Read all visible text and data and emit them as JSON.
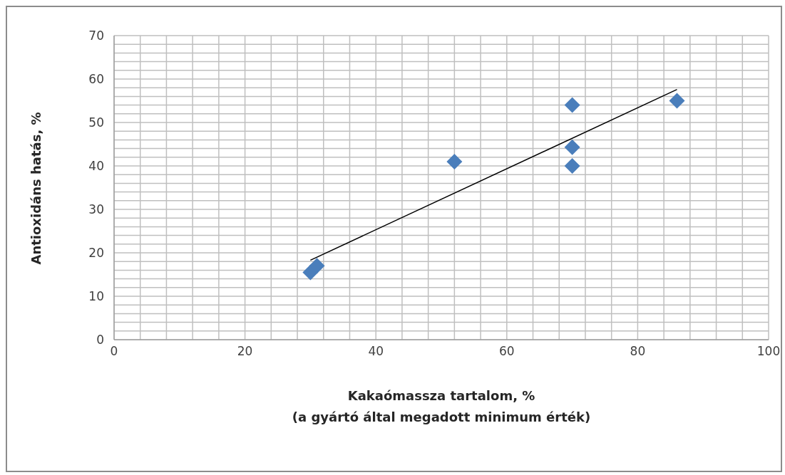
{
  "chart_data": {
    "type": "scatter",
    "xlabel": "Kakaómassza tartalom, %\n(a gyártó által megadott minimum érték)",
    "ylabel": "Antioxidáns hatás, %",
    "series": [
      {
        "color": "#4a7ebb",
        "marker": "diamond",
        "x": [
          30,
          31,
          52,
          70,
          70,
          70,
          86
        ],
        "values": [
          15.5,
          17,
          41,
          54,
          44.3,
          40,
          55
        ]
      },
      {
        "type": "line",
        "color": "#000000",
        "marker": "none",
        "x": [
          30,
          86
        ],
        "values": [
          18.3,
          57.6
        ]
      }
    ],
    "xlim": [
      0,
      100
    ],
    "ylim": [
      0,
      70
    ],
    "xticks": [
      0,
      {
        "value": 4,
        "label": null
      },
      {
        "value": 8,
        "label": null
      },
      {
        "value": 12,
        "label": null
      },
      {
        "value": 16,
        "label": null
      },
      20,
      {
        "value": 24,
        "label": null
      },
      {
        "value": 28,
        "label": null
      },
      {
        "value": 32,
        "label": null
      },
      {
        "value": 36,
        "label": null
      },
      40,
      {
        "value": 44,
        "label": null
      },
      {
        "value": 48,
        "label": null
      },
      {
        "value": 52,
        "label": null
      },
      {
        "value": 56,
        "label": null
      },
      60,
      {
        "value": 64,
        "label": null
      },
      {
        "value": 68,
        "label": null
      },
      {
        "value": 72,
        "label": null
      },
      {
        "value": 76,
        "label": null
      },
      80,
      {
        "value": 84,
        "label": null
      },
      {
        "value": 88,
        "label": null
      },
      {
        "value": 92,
        "label": null
      },
      {
        "value": 96,
        "label": null
      },
      100
    ],
    "yticks": [
      0,
      {
        "value": 2,
        "label": null
      },
      {
        "value": 4,
        "label": null
      },
      {
        "value": 6,
        "label": null
      },
      {
        "value": 8,
        "label": null
      },
      10,
      {
        "value": 12,
        "label": null
      },
      {
        "value": 14,
        "label": null
      },
      {
        "value": 16,
        "label": null
      },
      {
        "value": 18,
        "label": null
      },
      20,
      {
        "value": 22,
        "label": null
      },
      {
        "value": 24,
        "label": null
      },
      {
        "value": 26,
        "label": null
      },
      {
        "value": 28,
        "label": null
      },
      30,
      {
        "value": 32,
        "label": null
      },
      {
        "value": 34,
        "label": null
      },
      {
        "value": 36,
        "label": null
      },
      {
        "value": 38,
        "label": null
      },
      40,
      {
        "value": 42,
        "label": null
      },
      {
        "value": 44,
        "label": null
      },
      {
        "value": 46,
        "label": null
      },
      {
        "value": 48,
        "label": null
      },
      50,
      {
        "value": 52,
        "label": null
      },
      {
        "value": 54,
        "label": null
      },
      {
        "value": 56,
        "label": null
      },
      {
        "value": 58,
        "label": null
      },
      60,
      {
        "value": 62,
        "label": null
      },
      {
        "value": 64,
        "label": null
      },
      {
        "value": 66,
        "label": null
      },
      {
        "value": 68,
        "label": null
      },
      70
    ],
    "grid": true
  }
}
